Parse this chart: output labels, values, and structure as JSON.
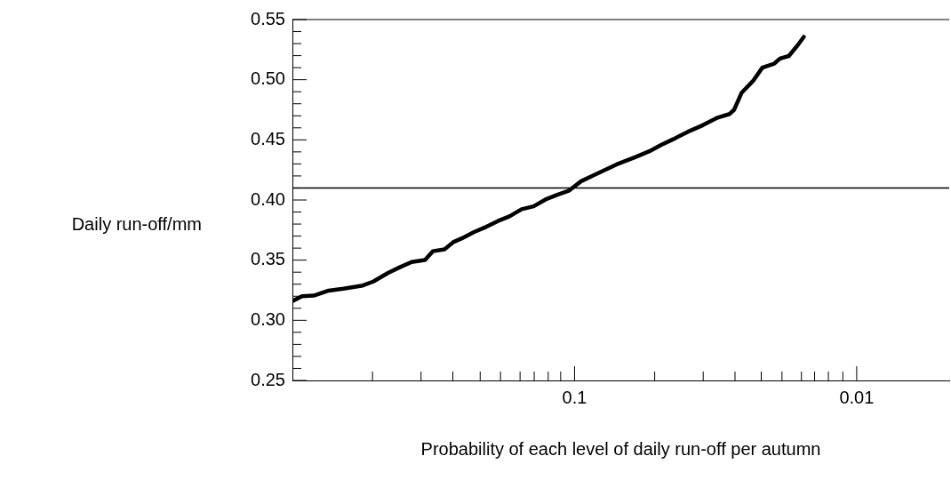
{
  "chart_data": {
    "type": "line",
    "xlabel": "Probability of each level of daily run-off per autumn",
    "ylabel": "Daily run-off/mm",
    "log": "x",
    "xlim": [
      1.0,
      0.0047
    ],
    "xticks": [
      {
        "value": 0.52,
        "label": null
      },
      {
        "value": 0.35,
        "label": null
      },
      {
        "value": 0.27,
        "label": null
      },
      {
        "value": 0.216,
        "label": null
      },
      {
        "value": 0.183,
        "label": null
      },
      {
        "value": 0.156,
        "label": null
      },
      {
        "value": 0.139,
        "label": null
      },
      {
        "value": 0.124,
        "label": null
      },
      {
        "value": 0.112,
        "label": null
      },
      0.1,
      {
        "value": 0.052,
        "label": null
      },
      {
        "value": 0.035,
        "label": null
      },
      {
        "value": 0.027,
        "label": null
      },
      {
        "value": 0.0218,
        "label": null
      },
      {
        "value": 0.0184,
        "label": null
      },
      {
        "value": 0.0157,
        "label": null
      },
      {
        "value": 0.0141,
        "label": null
      },
      {
        "value": 0.0126,
        "label": null
      },
      {
        "value": 0.0112,
        "label": null
      },
      0.01
    ],
    "ylim": [
      0.25,
      0.55
    ],
    "yticks": [
      0.25,
      {
        "value": 0.26,
        "label": null
      },
      {
        "value": 0.27,
        "label": null
      },
      {
        "value": 0.28,
        "label": null
      },
      {
        "value": 0.29,
        "label": null
      },
      {
        "value": 0.3,
        "label": "0.30"
      },
      {
        "value": 0.31,
        "label": null
      },
      {
        "value": 0.32,
        "label": null
      },
      {
        "value": 0.33,
        "label": null
      },
      {
        "value": 0.34,
        "label": null
      },
      0.35,
      {
        "value": 0.36,
        "label": null
      },
      {
        "value": 0.37,
        "label": null
      },
      {
        "value": 0.38,
        "label": null
      },
      {
        "value": 0.39,
        "label": null
      },
      {
        "value": 0.4,
        "label": "0.40"
      },
      {
        "value": 0.41,
        "label": null
      },
      {
        "value": 0.42,
        "label": null
      },
      {
        "value": 0.43,
        "label": null
      },
      {
        "value": 0.44,
        "label": null
      },
      0.45,
      {
        "value": 0.46,
        "label": null
      },
      {
        "value": 0.47,
        "label": null
      },
      {
        "value": 0.48,
        "label": null
      },
      {
        "value": 0.49,
        "label": null
      },
      {
        "value": 0.5,
        "label": "0.50"
      },
      {
        "value": 0.51,
        "label": null
      },
      {
        "value": 0.52,
        "label": null
      },
      {
        "value": 0.53,
        "label": null
      },
      {
        "value": 0.54,
        "label": null
      },
      0.55
    ],
    "grid": false,
    "legend": false,
    "marker": "none",
    "line_style": "solid",
    "ref_lines": [
      {
        "axis": "y",
        "value": 0.41,
        "color": "#000000"
      }
    ],
    "series": [
      {
        "color": "#000000",
        "x": [
          0.999,
          0.925,
          0.84,
          0.744,
          0.659,
          0.563,
          0.517,
          0.458,
          0.416,
          0.378,
          0.339,
          0.318,
          0.289,
          0.269,
          0.25,
          0.227,
          0.206,
          0.187,
          0.17,
          0.154,
          0.1397,
          0.1268,
          0.1151,
          0.1044,
          0.0948,
          0.086,
          0.0781,
          0.0709,
          0.0613,
          0.0543,
          0.0493,
          0.0447,
          0.0396,
          0.0351,
          0.0311,
          0.0282,
          0.0272,
          0.0256,
          0.0232,
          0.0216,
          0.0196,
          0.0187,
          0.0174,
          0.0162,
          0.0154
        ],
        "values": [
          0.316,
          0.32,
          0.3205,
          0.3247,
          0.3263,
          0.3289,
          0.3322,
          0.3394,
          0.3441,
          0.3485,
          0.3501,
          0.3574,
          0.359,
          0.365,
          0.3683,
          0.3734,
          0.3776,
          0.3825,
          0.3864,
          0.3923,
          0.3947,
          0.4004,
          0.4044,
          0.4079,
          0.4156,
          0.4203,
          0.4249,
          0.4296,
          0.4354,
          0.4405,
          0.4458,
          0.4505,
          0.4568,
          0.4622,
          0.4685,
          0.4715,
          0.475,
          0.489,
          0.4995,
          0.51,
          0.5134,
          0.5176,
          0.5197,
          0.5286,
          0.5356
        ]
      }
    ]
  }
}
